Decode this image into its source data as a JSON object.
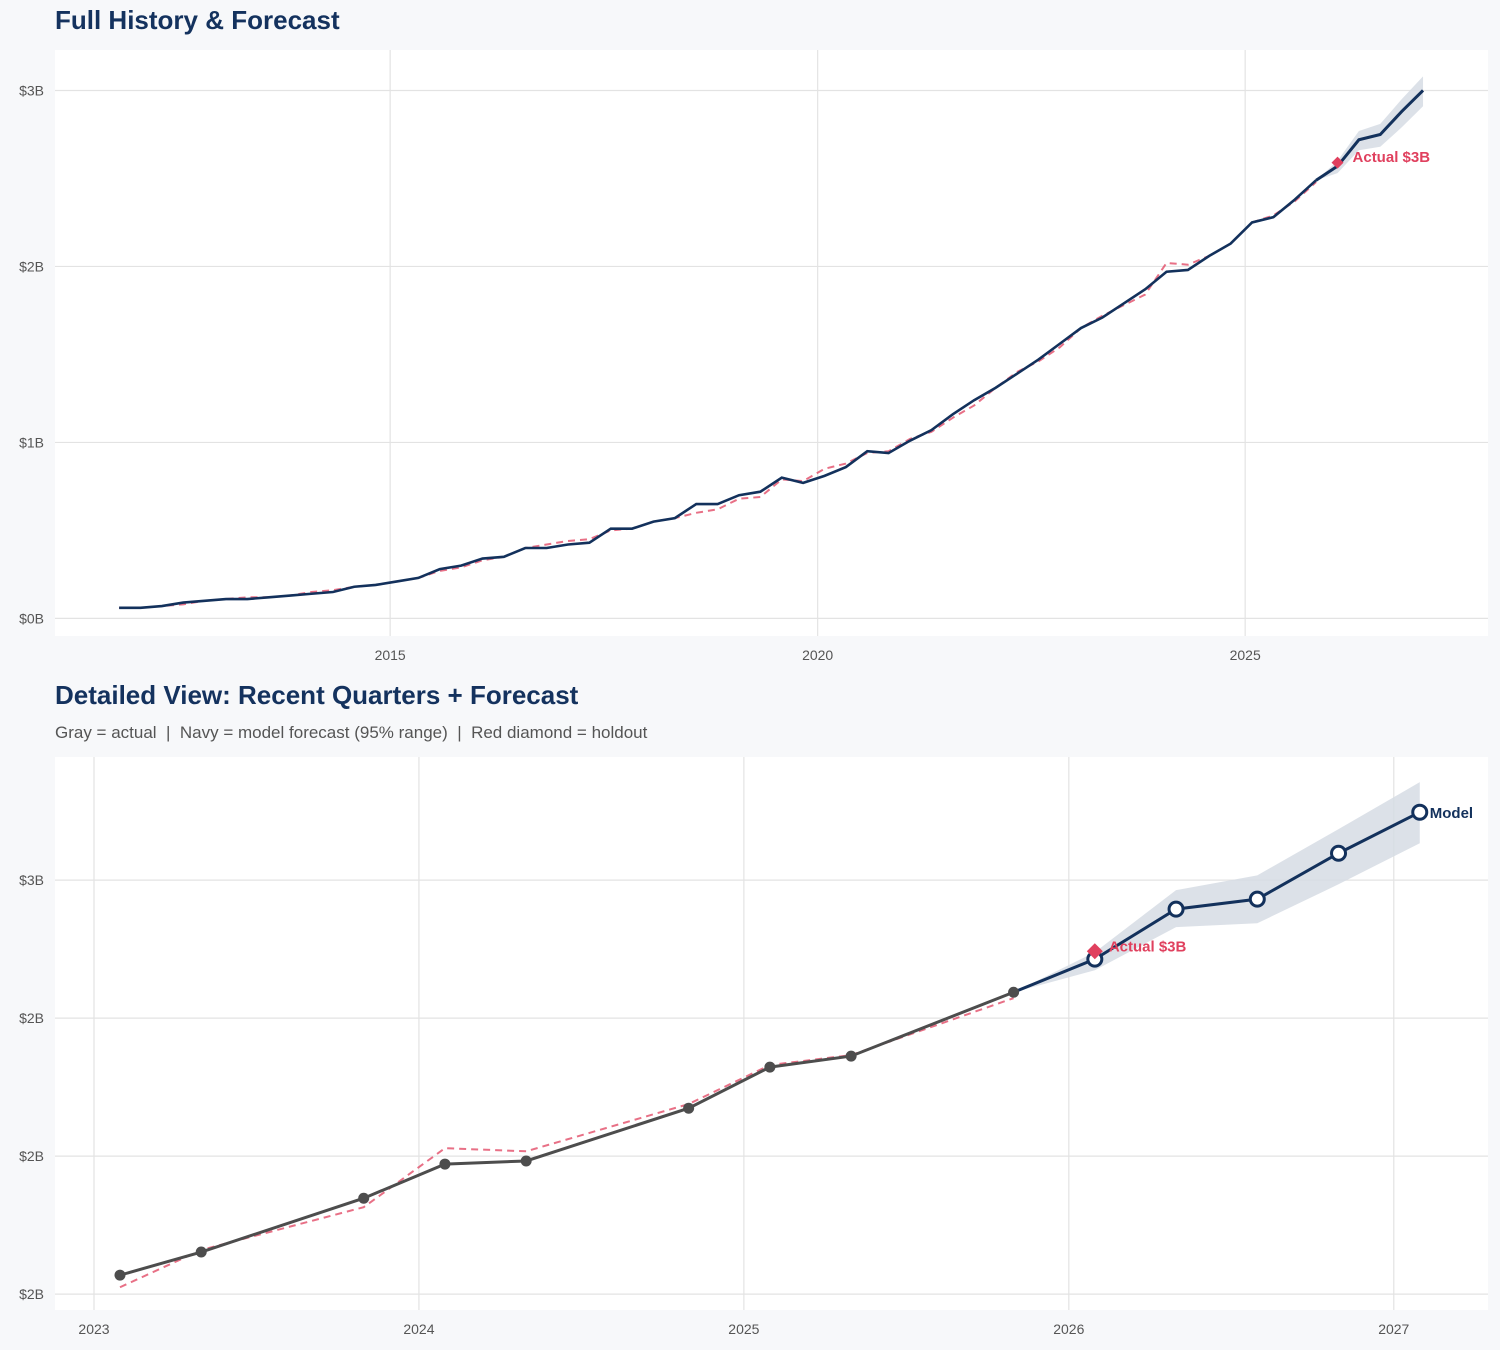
{
  "colors": {
    "navy": "#13315c",
    "red": "#e0405e",
    "actual_gray": "#4d4d4d",
    "band": "#d6dce4",
    "grid": "#e3e3e3"
  },
  "chart_data": [
    {
      "type": "line",
      "title": "Full History & Forecast",
      "xlim": [
        2011.08,
        2027.84
      ],
      "ylim": [
        -0.1,
        3.23
      ],
      "y_unit": "billions USD",
      "grid": true,
      "x_ticks": [
        {
          "value": 2015,
          "label": "2015"
        },
        {
          "value": 2020,
          "label": "2020"
        },
        {
          "value": 2025,
          "label": "2025"
        }
      ],
      "y_ticks": [
        {
          "value": 0,
          "label": "$0B"
        },
        {
          "value": 1,
          "label": "$1B"
        },
        {
          "value": 2,
          "label": "$2B"
        },
        {
          "value": 3,
          "label": "$3B"
        }
      ],
      "x": [
        2011.83,
        2012.08,
        2012.33,
        2012.58,
        2012.83,
        2013.08,
        2013.33,
        2013.58,
        2013.83,
        2014.08,
        2014.33,
        2014.58,
        2014.83,
        2015.08,
        2015.33,
        2015.58,
        2015.83,
        2016.08,
        2016.33,
        2016.58,
        2016.83,
        2017.08,
        2017.33,
        2017.58,
        2017.83,
        2018.08,
        2018.33,
        2018.58,
        2018.83,
        2019.08,
        2019.33,
        2019.58,
        2019.83,
        2020.08,
        2020.33,
        2020.58,
        2020.83,
        2021.08,
        2021.33,
        2021.58,
        2021.83,
        2022.08,
        2022.33,
        2022.58,
        2022.83,
        2023.08,
        2023.33,
        2023.58,
        2023.83,
        2024.08,
        2024.33,
        2024.58,
        2024.83,
        2025.08,
        2025.33,
        2025.58,
        2025.83
      ],
      "actual": [
        0.06,
        0.06,
        0.07,
        0.09,
        0.1,
        0.11,
        0.11,
        0.12,
        0.13,
        0.14,
        0.15,
        0.18,
        0.19,
        0.21,
        0.23,
        0.28,
        0.3,
        0.34,
        0.35,
        0.4,
        0.4,
        0.42,
        0.43,
        0.51,
        0.51,
        0.55,
        0.57,
        0.65,
        0.65,
        0.7,
        0.72,
        0.8,
        0.77,
        0.81,
        0.86,
        0.95,
        0.94,
        1.01,
        1.07,
        1.16,
        1.24,
        1.31,
        1.39,
        1.47,
        1.56,
        1.65,
        1.71,
        1.79,
        1.87,
        1.97,
        1.98,
        2.06,
        2.13,
        2.25,
        2.28,
        2.38,
        2.49
      ],
      "fitted": [
        0.06,
        0.06,
        0.07,
        0.08,
        0.1,
        0.11,
        0.12,
        0.12,
        0.13,
        0.15,
        0.16,
        0.18,
        0.19,
        0.21,
        0.23,
        0.27,
        0.29,
        0.33,
        0.35,
        0.4,
        0.42,
        0.44,
        0.45,
        0.5,
        0.51,
        0.55,
        0.57,
        0.6,
        0.62,
        0.68,
        0.69,
        0.79,
        0.78,
        0.85,
        0.88,
        0.94,
        0.95,
        1.02,
        1.06,
        1.14,
        1.21,
        1.31,
        1.4,
        1.46,
        1.54,
        1.65,
        1.72,
        1.78,
        1.84,
        2.02,
        2.01,
        2.06,
        2.13,
        2.25,
        2.29,
        2.37,
        2.48
      ],
      "forecast": {
        "x": [
          2025.83,
          2026.08,
          2026.33,
          2026.58,
          2026.83,
          2027.08
        ],
        "values": [
          2.49,
          2.57,
          2.72,
          2.75,
          2.88,
          3.0
        ],
        "lower": [
          2.49,
          2.53,
          2.66,
          2.68,
          2.79,
          2.91
        ],
        "upper": [
          2.49,
          2.6,
          2.77,
          2.81,
          2.95,
          3.08
        ]
      },
      "holdout": {
        "x": 2026.08,
        "value": 2.59,
        "label": "Actual $3B"
      }
    },
    {
      "type": "line",
      "title": "Detailed View: Recent Quarters + Forecast",
      "subtitle": "Gray = actual  |  Navy = model forecast (95% range)  |  Red diamond = holdout",
      "xlim": [
        2022.88,
        2027.29
      ],
      "ylim": [
        1.554,
        3.157
      ],
      "y_unit": "billions USD",
      "grid": true,
      "x_ticks": [
        {
          "value": 2023,
          "label": "2023"
        },
        {
          "value": 2024,
          "label": "2024"
        },
        {
          "value": 2025,
          "label": "2025"
        },
        {
          "value": 2026,
          "label": "2026"
        },
        {
          "value": 2027,
          "label": "2027"
        }
      ],
      "y_ticks": [
        {
          "value": 1.6,
          "label": "$2B"
        },
        {
          "value": 2.0,
          "label": "$2B"
        },
        {
          "value": 2.4,
          "label": "$2B"
        },
        {
          "value": 2.8,
          "label": "$3B"
        }
      ],
      "x": [
        2023.08,
        2023.33,
        2023.83,
        2024.08,
        2024.33,
        2024.83,
        2025.08,
        2025.33,
        2025.83
      ],
      "actual": [
        1.655,
        1.722,
        1.878,
        1.977,
        1.986,
        2.139,
        2.258,
        2.29,
        2.475
      ],
      "fitted": [
        1.62,
        1.728,
        1.852,
        2.023,
        2.014,
        2.151,
        2.264,
        2.293,
        2.458
      ],
      "forecast": {
        "x": [
          2025.83,
          2026.08,
          2026.33,
          2026.58,
          2026.83,
          2027.08
        ],
        "values": [
          2.475,
          2.571,
          2.716,
          2.745,
          2.878,
          2.997
        ],
        "lower": [
          2.475,
          2.539,
          2.664,
          2.675,
          2.788,
          2.907
        ],
        "upper": [
          2.475,
          2.591,
          2.771,
          2.814,
          2.948,
          3.084
        ]
      },
      "holdout": {
        "x": 2026.08,
        "value": 2.594,
        "label": "Actual $3B"
      },
      "forecast_label": "Model"
    }
  ]
}
